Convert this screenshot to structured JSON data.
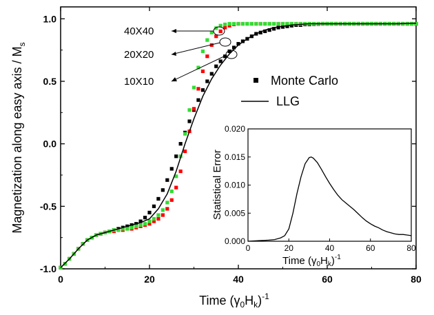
{
  "chart_data": [
    {
      "type": "scatter",
      "xlabel_main": "Time (",
      "xlabel_sym": "γ",
      "xlabel_sub0": "0",
      "xlabel_mid": "H",
      "xlabel_subk": "k",
      "xlabel_end": ")",
      "xlabel_sup": "-1",
      "ylabel_main": "Magnetization along easy axis / M",
      "ylabel_sub": "s",
      "xlim": [
        0,
        80
      ],
      "ylim": [
        -1.0,
        1.0
      ],
      "xticks": [
        "0",
        "20",
        "40",
        "60",
        "80"
      ],
      "yticks": [
        "-1.0",
        "-0.5",
        "0.0",
        "0.5",
        "1.0"
      ],
      "legend": {
        "placement": "center-right",
        "entries": [
          {
            "label": "Monte Carlo",
            "marker": "square"
          },
          {
            "label": "LLG",
            "marker": "line"
          }
        ]
      },
      "annotations": [
        "40X40",
        "20X20",
        "10X10"
      ],
      "colors": {
        "s10x10": "#000000",
        "s20x20": "#ff0000",
        "s40x40": "#33dd33",
        "llg": "#000000"
      },
      "series": [
        {
          "label_ref": "10X10",
          "color": "#000000",
          "x": [
            0,
            1,
            2,
            3,
            4,
            5,
            6,
            7,
            8,
            9,
            10,
            11,
            12,
            13,
            14,
            15,
            16,
            17,
            18,
            19,
            20,
            21,
            22,
            23,
            24,
            25,
            26,
            27,
            28,
            29,
            30,
            31,
            32,
            33,
            34,
            35,
            36,
            37,
            38,
            39,
            40,
            41,
            42,
            43,
            44,
            45,
            46,
            47,
            48,
            49,
            50,
            51,
            52,
            53,
            54,
            55,
            56,
            57,
            58,
            59,
            60,
            61,
            62,
            63,
            64,
            65,
            66,
            67,
            68,
            69,
            70,
            71,
            72,
            73,
            74,
            75,
            76,
            77,
            78,
            79,
            80
          ],
          "y": [
            -0.99,
            -0.96,
            -0.92,
            -0.88,
            -0.84,
            -0.8,
            -0.77,
            -0.75,
            -0.73,
            -0.72,
            -0.71,
            -0.7,
            -0.69,
            -0.68,
            -0.67,
            -0.66,
            -0.65,
            -0.64,
            -0.62,
            -0.59,
            -0.55,
            -0.5,
            -0.44,
            -0.37,
            -0.29,
            -0.2,
            -0.1,
            0.0,
            0.09,
            0.18,
            0.27,
            0.35,
            0.43,
            0.5,
            0.56,
            0.62,
            0.66,
            0.7,
            0.74,
            0.77,
            0.8,
            0.82,
            0.84,
            0.86,
            0.88,
            0.89,
            0.9,
            0.91,
            0.92,
            0.93,
            0.935,
            0.94,
            0.945,
            0.95,
            0.95,
            0.955,
            0.955,
            0.957,
            0.958,
            0.96,
            0.96,
            0.96,
            0.96,
            0.96,
            0.96,
            0.96,
            0.96,
            0.96,
            0.96,
            0.96,
            0.96,
            0.96,
            0.96,
            0.96,
            0.96,
            0.96,
            0.96,
            0.96,
            0.96,
            0.96,
            0.96
          ]
        },
        {
          "label_ref": "20X20",
          "color": "#ff0000",
          "x": [
            0,
            1,
            2,
            3,
            4,
            5,
            6,
            7,
            8,
            9,
            10,
            11,
            12,
            13,
            14,
            15,
            16,
            17,
            18,
            19,
            20,
            21,
            22,
            23,
            24,
            25,
            26,
            27,
            28,
            29,
            30,
            31,
            32,
            33,
            34,
            35,
            36,
            37,
            38,
            39,
            40,
            41,
            42,
            43,
            44,
            45,
            46,
            47,
            48,
            49,
            50,
            51,
            52,
            53,
            54,
            55,
            56,
            57,
            58,
            59,
            60,
            61,
            62,
            63,
            64,
            65,
            66,
            67,
            68,
            69,
            70,
            71,
            72,
            73,
            74,
            75,
            76,
            77,
            78,
            79,
            80
          ],
          "y": [
            -0.99,
            -0.96,
            -0.92,
            -0.88,
            -0.84,
            -0.8,
            -0.77,
            -0.75,
            -0.73,
            -0.72,
            -0.71,
            -0.7,
            -0.7,
            -0.69,
            -0.69,
            -0.68,
            -0.68,
            -0.67,
            -0.66,
            -0.65,
            -0.64,
            -0.62,
            -0.6,
            -0.57,
            -0.52,
            -0.45,
            -0.35,
            -0.22,
            -0.06,
            0.1,
            0.28,
            0.44,
            0.58,
            0.7,
            0.79,
            0.86,
            0.9,
            0.93,
            0.945,
            0.955,
            0.96,
            0.96,
            0.96,
            0.96,
            0.96,
            0.96,
            0.96,
            0.96,
            0.96,
            0.96,
            0.96,
            0.96,
            0.96,
            0.96,
            0.96,
            0.96,
            0.96,
            0.96,
            0.96,
            0.96,
            0.96,
            0.96,
            0.96,
            0.96,
            0.96,
            0.96,
            0.96,
            0.96,
            0.96,
            0.96,
            0.96,
            0.96,
            0.96,
            0.96,
            0.96,
            0.96,
            0.96,
            0.96,
            0.96,
            0.96,
            0.96
          ]
        },
        {
          "label_ref": "40X40",
          "color": "#33dd33",
          "x": [
            0,
            1,
            2,
            3,
            4,
            5,
            6,
            7,
            8,
            9,
            10,
            11,
            12,
            13,
            14,
            15,
            16,
            17,
            18,
            19,
            20,
            21,
            22,
            23,
            24,
            25,
            26,
            27,
            28,
            29,
            30,
            31,
            32,
            33,
            34,
            35,
            36,
            37,
            38,
            39,
            40,
            41,
            42,
            43,
            44,
            45,
            46,
            47,
            48,
            49,
            50,
            51,
            52,
            53,
            54,
            55,
            56,
            57,
            58,
            59,
            60,
            61,
            62,
            63,
            64,
            65,
            66,
            67,
            68,
            69,
            70,
            71,
            72,
            73,
            74,
            75,
            76,
            77,
            78,
            79,
            80
          ],
          "y": [
            -0.99,
            -0.96,
            -0.92,
            -0.88,
            -0.84,
            -0.8,
            -0.77,
            -0.75,
            -0.73,
            -0.72,
            -0.71,
            -0.7,
            -0.69,
            -0.69,
            -0.68,
            -0.68,
            -0.67,
            -0.66,
            -0.65,
            -0.64,
            -0.62,
            -0.6,
            -0.57,
            -0.53,
            -0.47,
            -0.38,
            -0.26,
            -0.1,
            0.08,
            0.27,
            0.45,
            0.61,
            0.74,
            0.83,
            0.89,
            0.925,
            0.945,
            0.955,
            0.96,
            0.96,
            0.96,
            0.96,
            0.96,
            0.96,
            0.96,
            0.96,
            0.96,
            0.96,
            0.96,
            0.96,
            0.96,
            0.96,
            0.96,
            0.96,
            0.96,
            0.96,
            0.96,
            0.96,
            0.96,
            0.96,
            0.96,
            0.96,
            0.96,
            0.96,
            0.96,
            0.96,
            0.96,
            0.96,
            0.96,
            0.96,
            0.96,
            0.96,
            0.96,
            0.96,
            0.96,
            0.96,
            0.96,
            0.96,
            0.96,
            0.96,
            0.96
          ]
        },
        {
          "name": "LLG",
          "color": "#000000",
          "line": true,
          "x": [
            0,
            2,
            4,
            6,
            8,
            10,
            12,
            14,
            16,
            18,
            20,
            22,
            24,
            26,
            28,
            30,
            32,
            34,
            36,
            38,
            40,
            42,
            44,
            46,
            48,
            50,
            52,
            54,
            56,
            58,
            60,
            64,
            68,
            72,
            76,
            80
          ],
          "y": [
            -0.99,
            -0.92,
            -0.84,
            -0.77,
            -0.73,
            -0.71,
            -0.69,
            -0.67,
            -0.65,
            -0.63,
            -0.6,
            -0.52,
            -0.4,
            -0.22,
            0.0,
            0.2,
            0.38,
            0.52,
            0.63,
            0.72,
            0.79,
            0.84,
            0.88,
            0.91,
            0.93,
            0.94,
            0.95,
            0.955,
            0.96,
            0.96,
            0.96,
            0.96,
            0.96,
            0.96,
            0.96,
            0.965
          ]
        }
      ]
    },
    {
      "type": "line",
      "placement": "inset",
      "ylabel": "Statistical Error",
      "xlabel_main": "Time (",
      "xlabel_sym": "γ",
      "xlabel_sub0": "0",
      "xlabel_mid": "H",
      "xlabel_subk": "k",
      "xlabel_end": ")",
      "xlabel_sup": "-1",
      "xlim": [
        0,
        80
      ],
      "ylim": [
        0.0,
        0.02
      ],
      "xticks": [
        "0",
        "20",
        "40",
        "60",
        "80"
      ],
      "yticks": [
        "0.000",
        "0.005",
        "0.010",
        "0.015",
        "0.020"
      ],
      "series": [
        {
          "color": "#000000",
          "x": [
            0,
            5,
            10,
            13,
            16,
            18,
            20,
            22,
            24,
            26,
            28,
            30,
            31,
            32,
            34,
            36,
            38,
            40,
            42,
            44,
            46,
            48,
            50,
            52,
            54,
            56,
            58,
            60,
            62,
            64,
            66,
            68,
            70,
            72,
            74,
            76,
            78,
            80
          ],
          "y": [
            0.0,
            0.0001,
            0.0002,
            0.0003,
            0.0006,
            0.001,
            0.0022,
            0.005,
            0.0085,
            0.0115,
            0.0138,
            0.0149,
            0.015,
            0.0148,
            0.014,
            0.0128,
            0.0115,
            0.0103,
            0.0092,
            0.0082,
            0.0074,
            0.0068,
            0.0062,
            0.0056,
            0.0049,
            0.0042,
            0.0036,
            0.0031,
            0.0027,
            0.0024,
            0.002,
            0.0017,
            0.0015,
            0.0013,
            0.0012,
            0.0012,
            0.0011,
            0.001
          ]
        }
      ]
    }
  ]
}
